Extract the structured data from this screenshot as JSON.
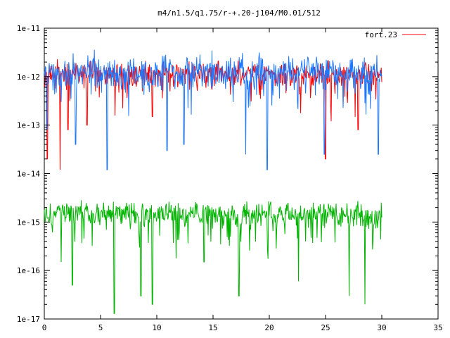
{
  "chart_data": {
    "type": "line",
    "title": "m4/n1.5/q1.75/r-+.20-j104/M0.01/512",
    "xlabel": "",
    "ylabel": "",
    "xlim": [
      0,
      35
    ],
    "ylim": [
      1e-17,
      1e-11
    ],
    "y_scale": "log",
    "grid": false,
    "legend_position": "top-right",
    "x_ticks": [
      0,
      5,
      10,
      15,
      20,
      25,
      30,
      35
    ],
    "x_tick_labels": [
      "0",
      "5",
      "10",
      "15",
      "20",
      "25",
      "30",
      "35"
    ],
    "y_ticks": [
      1e-17,
      1e-16,
      1e-15,
      1e-14,
      1e-13,
      1e-12,
      1e-11
    ],
    "y_tick_labels": [
      "1e-17",
      "1e-16",
      "1e-15",
      "1e-14",
      "1e-13",
      "1e-12",
      "1e-11"
    ],
    "series": [
      {
        "name": "fort.23",
        "color": "#ff0000",
        "x_range": [
          0,
          30
        ],
        "median": 1.2e-12,
        "band": [
          5e-13,
          2.5e-12
        ],
        "dips": [
          [
            0.25,
            2e-14
          ],
          [
            1.4,
            1.2e-14
          ],
          [
            2.1,
            8e-14
          ],
          [
            3.8,
            1e-13
          ],
          [
            9.6,
            1.5e-13
          ],
          [
            25.0,
            2e-14
          ],
          [
            25.5,
            1.2e-13
          ],
          [
            27.9,
            8e-14
          ]
        ]
      },
      {
        "name": "",
        "color": "#1e78ff",
        "x_range": [
          0,
          30
        ],
        "median": 1.5e-12,
        "band": [
          4e-13,
          4e-12
        ],
        "dips": [
          [
            0.2,
            8e-14
          ],
          [
            2.8,
            4e-14
          ],
          [
            5.6,
            1.2e-14
          ],
          [
            10.9,
            3e-14
          ],
          [
            12.4,
            4e-14
          ],
          [
            17.9,
            2.5e-14
          ],
          [
            19.8,
            1.2e-14
          ],
          [
            24.9,
            2.5e-14
          ],
          [
            29.7,
            2.5e-14
          ]
        ]
      },
      {
        "name": "",
        "color": "#00b400",
        "x_range": [
          0,
          30
        ],
        "median": 1.7e-15,
        "band": [
          6e-16,
          3.5e-15
        ],
        "dips": [
          [
            1.5,
            1.5e-16
          ],
          [
            2.5,
            5e-17
          ],
          [
            6.2,
            1.3e-17
          ],
          [
            8.6,
            3e-17
          ],
          [
            9.6,
            2e-17
          ],
          [
            14.2,
            1.5e-16
          ],
          [
            17.3,
            3e-17
          ],
          [
            22.6,
            6e-17
          ],
          [
            27.1,
            3e-17
          ],
          [
            28.5,
            2e-17
          ]
        ]
      }
    ]
  }
}
